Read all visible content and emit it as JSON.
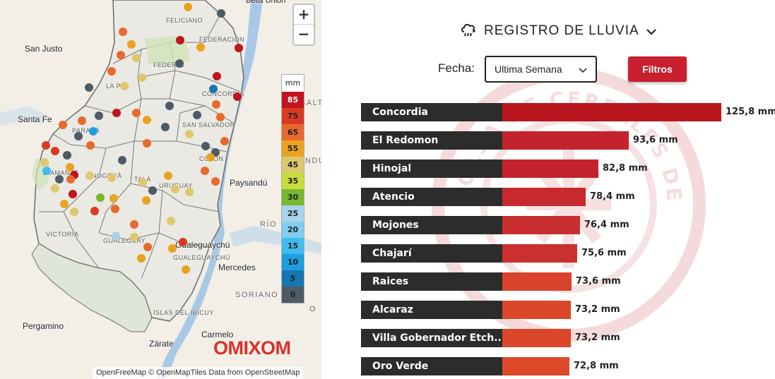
{
  "map": {
    "zoom_in": "+",
    "zoom_out": "−",
    "legend": {
      "unit": "mm",
      "items": [
        {
          "value": "85",
          "color": "#c0141e"
        },
        {
          "value": "75",
          "color": "#d93b22"
        },
        {
          "value": "65",
          "color": "#e8692d"
        },
        {
          "value": "55",
          "color": "#e9a321"
        },
        {
          "value": "45",
          "color": "#dec86e"
        },
        {
          "value": "35",
          "color": "#c6dd3a"
        },
        {
          "value": "30",
          "color": "#78b72e"
        },
        {
          "value": "25",
          "color": "#a9d3ec"
        },
        {
          "value": "20",
          "color": "#82cdee"
        },
        {
          "value": "15",
          "color": "#3fbcef"
        },
        {
          "value": "10",
          "color": "#1d9ee0"
        },
        {
          "value": "5",
          "color": "#1678b3"
        },
        {
          "value": "0",
          "color": "#4d5b66"
        }
      ]
    },
    "places": [
      {
        "label": "Bella Unión"
      },
      {
        "label": "San Justo"
      },
      {
        "label": "Santa Fe"
      },
      {
        "label": "Paysandú"
      },
      {
        "label": "Gualeguaychú"
      },
      {
        "label": "Mercedes"
      },
      {
        "label": "Pergamino"
      },
      {
        "label": "Zárate"
      },
      {
        "label": "Carmelo"
      },
      {
        "label": "SORIANO"
      },
      {
        "label": "RÍO"
      },
      {
        "label": "SALT"
      },
      {
        "label": "NDÚ"
      },
      {
        "label": "O"
      }
    ],
    "departments": [
      {
        "label": "FELICIANO"
      },
      {
        "label": "FEDERACIÓN"
      },
      {
        "label": "FEDERAL"
      },
      {
        "label": "LA PAZ"
      },
      {
        "label": "CONCORDIA"
      },
      {
        "label": "PARANÁ"
      },
      {
        "label": "SAN SALVADOR"
      },
      {
        "label": "DIAMANTE"
      },
      {
        "label": "NOGOYÁ"
      },
      {
        "label": "TALA"
      },
      {
        "label": "URUGUAY"
      },
      {
        "label": "COLÓN"
      },
      {
        "label": "VICTORIA"
      },
      {
        "label": "GUALEGUAY"
      },
      {
        "label": "GUALEGUAYCHÚ"
      },
      {
        "label": "ISLAS DEL IBICUY"
      }
    ],
    "brand": "OMIXOM",
    "attribution_1": "OpenFreeMap © OpenMapTiles",
    "attribution_2": "Data from",
    "attribution_3": "OpenStreetMap"
  },
  "panel": {
    "title": "REGISTRO DE LLUVIA",
    "title_icon": "rain-cloud-icon",
    "fecha_label": "Fecha:",
    "fecha_value": "Ultima Semana",
    "filter_button": "Filtros",
    "watermark_text": "BOLSA DE CEREALES DE ENTRE RÍOS"
  },
  "chart_data": {
    "type": "bar",
    "orientation": "horizontal",
    "categories": [
      "Concordia",
      "El Redomon",
      "Hinojal",
      "Atencio",
      "Mojones",
      "Chajarí",
      "Raices",
      "Alcaraz",
      "Villa Gobernador Etch...",
      "Oro Verde"
    ],
    "values": [
      125.8,
      93.6,
      82.8,
      78.4,
      76.4,
      75.6,
      73.6,
      73.2,
      73.2,
      72.8
    ],
    "labels": [
      "125,8 mm",
      "93,6 mm",
      "82,8 mm",
      "78,4 mm",
      "76,4 mm",
      "75,6 mm",
      "73,6 mm",
      "73,2 mm",
      "73,2 mm",
      "72,8 mm"
    ],
    "colors": [
      "#b8151f",
      "#c4222c",
      "#c4222c",
      "#c72a2e",
      "#c92f30",
      "#c9302f",
      "#d9432b",
      "#da472a",
      "#da472a",
      "#dc4a29"
    ]
  }
}
